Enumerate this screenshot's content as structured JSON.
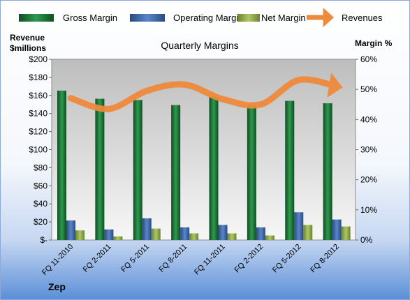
{
  "chart_data": {
    "type": "bar",
    "title": "Quarterly Margins",
    "company": "Zep",
    "left_axis_label_line1": "Revenue",
    "left_axis_label_line2": "$millions",
    "right_axis_label": "Margin %",
    "categories": [
      "FQ 11-2010",
      "FQ 2-2011",
      "FQ 5-2011",
      "FQ 8-2011",
      "FQ 11-2011",
      "FQ 2-2012",
      "FQ 5-2012",
      "FQ 8-2012"
    ],
    "left_ticks": [
      "$-",
      "$20",
      "$40",
      "$60",
      "$80",
      "$100",
      "$120",
      "$140",
      "$160",
      "$180",
      "$200"
    ],
    "right_ticks": [
      "0%",
      "10%",
      "20%",
      "30%",
      "40%",
      "50%",
      "60%"
    ],
    "ylim_left": [
      0,
      200
    ],
    "ylim_right": [
      0,
      60
    ],
    "legend_position": "top",
    "grid": false,
    "series": [
      {
        "name": "Gross Margin",
        "axis": "right",
        "type": "bar",
        "color": "#1e7a3a",
        "values": [
          49.6,
          46.9,
          46.5,
          44.8,
          47.5,
          44.8,
          46.2,
          45.4
        ]
      },
      {
        "name": "Operating Margin",
        "axis": "right",
        "type": "bar",
        "color": "#3d67a8",
        "values": [
          6.5,
          3.5,
          7.2,
          4.2,
          5.0,
          4.2,
          9.2,
          6.8
        ]
      },
      {
        "name": "Net Margin",
        "axis": "right",
        "type": "bar",
        "color": "#8ca84a",
        "values": [
          3.2,
          1.2,
          3.8,
          2.2,
          2.2,
          1.5,
          5.0,
          4.5
        ]
      },
      {
        "name": "Revenues",
        "axis": "left",
        "type": "line",
        "color": "#ee8a3c",
        "values": [
          157,
          145,
          165,
          172,
          156,
          150,
          177,
          170
        ]
      }
    ]
  }
}
